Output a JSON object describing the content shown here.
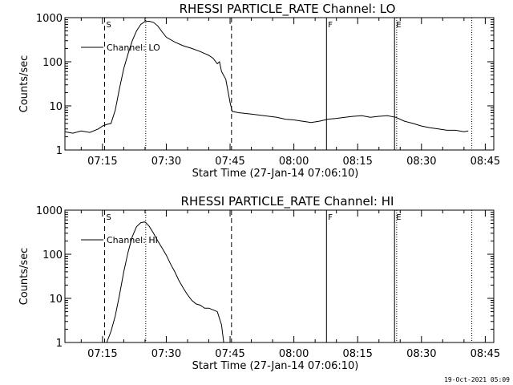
{
  "footer_timestamp": "19-Oct-2021 05:09",
  "colors": {
    "background": "#ffffff",
    "foreground": "#000000"
  },
  "chart_data": [
    {
      "type": "line",
      "title": "RHESSI PARTICLE_RATE Channel: LO",
      "xlabel": "Start Time (27-Jan-14 07:06:10)",
      "ylabel": "Counts/sec",
      "y_scale": "log",
      "ylim": [
        1,
        1000
      ],
      "xlim": [
        "07:06:10",
        "08:47:00"
      ],
      "x_ticks": [
        "07:15",
        "07:30",
        "07:45",
        "08:00",
        "08:15",
        "08:30",
        "08:45"
      ],
      "y_ticks": [
        "1",
        "10",
        "100",
        "1000"
      ],
      "legend": {
        "position": "top-left",
        "entries": [
          "Channel: LO"
        ]
      },
      "markers": [
        {
          "label": "S",
          "time": "07:15:30",
          "style": "dashed"
        },
        {
          "label": "",
          "time": "07:25:10",
          "style": "dotted"
        },
        {
          "label": "",
          "time": "07:45:20",
          "style": "dashed"
        },
        {
          "label": "F",
          "time": "08:07:40",
          "style": "solid"
        },
        {
          "label": "E",
          "time": "08:23:40",
          "style": "solid"
        },
        {
          "label": "",
          "time": "08:24:10",
          "style": "dotted"
        },
        {
          "label": "",
          "time": "08:41:50",
          "style": "dotted"
        }
      ],
      "series": [
        {
          "name": "Channel: LO",
          "x": [
            "07:06:10",
            "07:08:00",
            "07:10:00",
            "07:12:00",
            "07:14:00",
            "07:15:00",
            "07:16:00",
            "07:17:00",
            "07:18:00",
            "07:19:00",
            "07:20:00",
            "07:21:00",
            "07:22:00",
            "07:23:00",
            "07:24:00",
            "07:25:00",
            "07:26:00",
            "07:27:00",
            "07:28:00",
            "07:29:00",
            "07:30:00",
            "07:32:00",
            "07:34:00",
            "07:36:00",
            "07:38:00",
            "07:40:00",
            "07:41:00",
            "07:42:00",
            "07:42:30",
            "07:43:00",
            "07:44:00",
            "07:45:00",
            "07:45:30",
            "07:47:00",
            "07:50:00",
            "07:53:00",
            "07:56:00",
            "07:58:00",
            "08:00:00",
            "08:02:00",
            "08:04:00",
            "08:06:00",
            "08:08:00",
            "08:10:00",
            "08:12:00",
            "08:14:00",
            "08:16:00",
            "08:18:00",
            "08:20:00",
            "08:22:00",
            "08:24:00",
            "08:26:00",
            "08:28:00",
            "08:30:00",
            "08:32:00",
            "08:34:00",
            "08:36:00",
            "08:38:00",
            "08:40:00",
            "08:41:00"
          ],
          "y": [
            2.6,
            2.4,
            2.7,
            2.5,
            3.0,
            3.5,
            3.8,
            4.0,
            8,
            25,
            70,
            150,
            300,
            500,
            700,
            820,
            830,
            780,
            650,
            480,
            360,
            280,
            230,
            200,
            170,
            140,
            120,
            90,
            100,
            60,
            40,
            12,
            7.5,
            7.0,
            6.5,
            6.0,
            5.5,
            5.0,
            4.8,
            4.5,
            4.2,
            4.5,
            5.0,
            5.2,
            5.5,
            5.8,
            6.0,
            5.5,
            5.8,
            6.0,
            5.5,
            4.5,
            4.0,
            3.5,
            3.2,
            3.0,
            2.8,
            2.8,
            2.6,
            2.7
          ]
        }
      ]
    },
    {
      "type": "line",
      "title": "RHESSI PARTICLE_RATE Channel: HI",
      "xlabel": "Start Time (27-Jan-14 07:06:10)",
      "ylabel": "Counts/sec",
      "y_scale": "log",
      "ylim": [
        1,
        1000
      ],
      "xlim": [
        "07:06:10",
        "08:47:00"
      ],
      "x_ticks": [
        "07:15",
        "07:30",
        "07:45",
        "08:00",
        "08:15",
        "08:30",
        "08:45"
      ],
      "y_ticks": [
        "1",
        "10",
        "100",
        "1000"
      ],
      "legend": {
        "position": "top-left",
        "entries": [
          "Channel: HI"
        ]
      },
      "markers": [
        {
          "label": "S",
          "time": "07:15:30",
          "style": "dashed"
        },
        {
          "label": "",
          "time": "07:25:10",
          "style": "dotted"
        },
        {
          "label": "",
          "time": "07:45:20",
          "style": "dashed"
        },
        {
          "label": "F",
          "time": "08:07:40",
          "style": "solid"
        },
        {
          "label": "E",
          "time": "08:23:40",
          "style": "solid"
        },
        {
          "label": "",
          "time": "08:24:10",
          "style": "dotted"
        },
        {
          "label": "",
          "time": "08:41:50",
          "style": "dotted"
        }
      ],
      "series": [
        {
          "name": "Channel: HI",
          "x": [
            "07:16:00",
            "07:17:00",
            "07:18:00",
            "07:19:00",
            "07:20:00",
            "07:21:00",
            "07:22:00",
            "07:23:00",
            "07:24:00",
            "07:25:00",
            "07:26:00",
            "07:27:00",
            "07:28:00",
            "07:29:00",
            "07:30:00",
            "07:31:00",
            "07:32:00",
            "07:33:00",
            "07:34:00",
            "07:35:00",
            "07:36:00",
            "07:37:00",
            "07:38:00",
            "07:39:00",
            "07:40:00",
            "07:41:00",
            "07:42:00",
            "07:43:00",
            "07:43:30"
          ],
          "y": [
            1.0,
            1.8,
            4,
            12,
            40,
            110,
            250,
            420,
            520,
            540,
            430,
            300,
            200,
            140,
            95,
            60,
            40,
            25,
            17,
            12,
            9,
            7.5,
            7,
            6,
            6,
            5.5,
            5,
            2.5,
            1.0
          ]
        }
      ]
    }
  ]
}
